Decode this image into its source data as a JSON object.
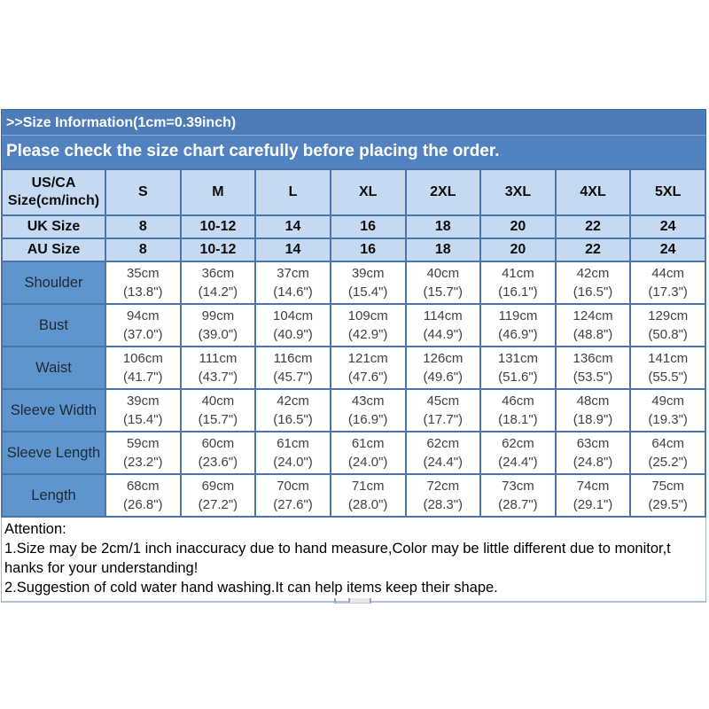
{
  "header": {
    "title": ">>Size Information(1cm=0.39inch)",
    "subtitle": "Please check the size chart carefully before placing the order."
  },
  "size_table": {
    "corner": {
      "line1": "US/CA",
      "line2": "Size(cm/inch)"
    },
    "sizes": [
      "S",
      "M",
      "L",
      "XL",
      "2XL",
      "3XL",
      "4XL",
      "5XL"
    ],
    "uk": {
      "label": "UK Size",
      "values": [
        "8",
        "10-12",
        "14",
        "16",
        "18",
        "20",
        "22",
        "24"
      ]
    },
    "au": {
      "label": "AU Size",
      "values": [
        "8",
        "10-12",
        "14",
        "16",
        "18",
        "20",
        "22",
        "24"
      ]
    },
    "measurements": [
      {
        "label": "Shoulder",
        "cm": [
          "35cm",
          "36cm",
          "37cm",
          "39cm",
          "40cm",
          "41cm",
          "42cm",
          "44cm"
        ],
        "inch": [
          "(13.8\")",
          "(14.2\")",
          "(14.6\")",
          "(15.4\")",
          "(15.7\")",
          "(16.1\")",
          "(16.5\")",
          "(17.3\")"
        ]
      },
      {
        "label": "Bust",
        "cm": [
          "94cm",
          "99cm",
          "104cm",
          "109cm",
          "114cm",
          "119cm",
          "124cm",
          "129cm"
        ],
        "inch": [
          "(37.0\")",
          "(39.0\")",
          "(40.9\")",
          "(42.9\")",
          "(44.9\")",
          "(46.9\")",
          "(48.8\")",
          "(50.8\")"
        ]
      },
      {
        "label": "Waist",
        "cm": [
          "106cm",
          "111cm",
          "116cm",
          "121cm",
          "126cm",
          "131cm",
          "136cm",
          "141cm"
        ],
        "inch": [
          "(41.7\")",
          "(43.7\")",
          "(45.7\")",
          "(47.6\")",
          "(49.6\")",
          "(51.6\")",
          "(53.5\")",
          "(55.5\")"
        ]
      },
      {
        "label": "Sleeve Width",
        "cm": [
          "39cm",
          "40cm",
          "42cm",
          "43cm",
          "45cm",
          "46cm",
          "48cm",
          "49cm"
        ],
        "inch": [
          "(15.4\")",
          "(15.7\")",
          "(16.5\")",
          "(16.9\")",
          "(17.7\")",
          "(18.1\")",
          "(18.9\")",
          "(19.3\")"
        ]
      },
      {
        "label": "Sleeve Length",
        "cm": [
          "59cm",
          "60cm",
          "61cm",
          "61cm",
          "62cm",
          "62cm",
          "63cm",
          "64cm"
        ],
        "inch": [
          "(23.2\")",
          "(23.6\")",
          "(24.0\")",
          "(24.0\")",
          "(24.4\")",
          "(24.4\")",
          "(24.8\")",
          "(25.2\")"
        ]
      },
      {
        "label": "Length",
        "cm": [
          "68cm",
          "69cm",
          "70cm",
          "71cm",
          "72cm",
          "73cm",
          "74cm",
          "75cm"
        ],
        "inch": [
          "(26.8\")",
          "(27.2\")",
          "(27.6\")",
          "(28.0\")",
          "(28.3\")",
          "(28.7\")",
          "(29.1\")",
          "(29.5\")"
        ]
      }
    ]
  },
  "attention": {
    "lines": [
      "Attention:",
      "1.Size may be 2cm/1 inch inaccuracy due to hand measure,Color may be little different due to monitor,t",
      "hanks for your understanding!",
      "2.Suggestion of cold water hand washing.It can help items keep their shape."
    ]
  },
  "colors": {
    "band_blue": "#4d7cb9",
    "light_blue_cell": "#c5d9f0",
    "label_blue_cell": "#6094cc",
    "border_blue": "#4a74ab",
    "data_text": "#414141"
  }
}
